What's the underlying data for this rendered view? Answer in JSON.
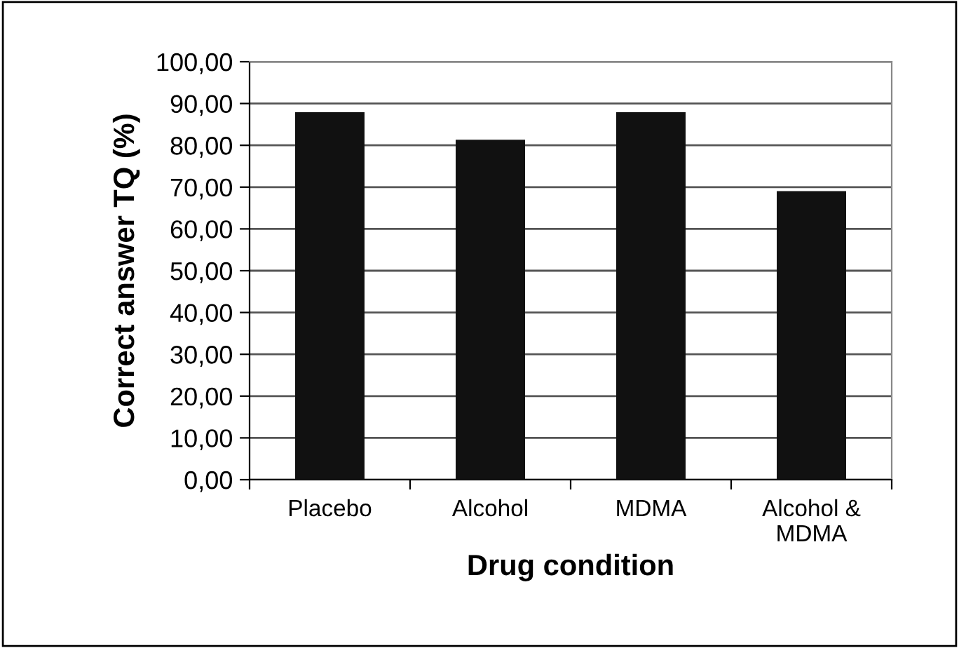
{
  "chart_data": {
    "type": "bar",
    "xlabel": "Drug condition",
    "ylabel": "Correct answer TQ (%)",
    "categories": [
      "Placebo",
      "Alcohol",
      "MDMA",
      "Alcohol &\nMDMA"
    ],
    "values": [
      87.7,
      81.1,
      87.7,
      68.8
    ],
    "color": "#111111",
    "ylim": [
      0,
      100
    ],
    "yticks": [
      {
        "value": 0,
        "label": "0,00"
      },
      {
        "value": 10,
        "label": "10,00"
      },
      {
        "value": 20,
        "label": "20,00"
      },
      {
        "value": 30,
        "label": "30,00"
      },
      {
        "value": 40,
        "label": "40,00"
      },
      {
        "value": 50,
        "label": "50,00"
      },
      {
        "value": 60,
        "label": "60,00"
      },
      {
        "value": 70,
        "label": "70,00"
      },
      {
        "value": 80,
        "label": "80,00"
      },
      {
        "value": 90,
        "label": "90,00"
      },
      {
        "value": 100,
        "label": "100,00"
      }
    ],
    "grid": "y",
    "legend": false
  }
}
